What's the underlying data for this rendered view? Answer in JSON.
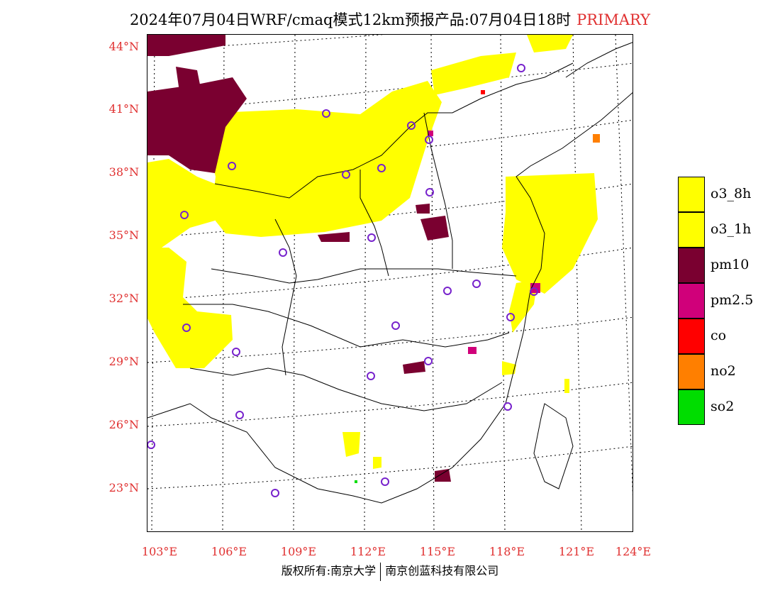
{
  "title": {
    "text": "2024年07月04日WRF/cmaq模式12km预报产品:07月04日18时",
    "tag": "PRIMARY",
    "tag_color": "#e03030"
  },
  "axes": {
    "lat_labels": [
      "44°N",
      "41°N",
      "38°N",
      "35°N",
      "32°N",
      "29°N",
      "26°N",
      "23°N"
    ],
    "lon_labels": [
      "103°E",
      "106°E",
      "109°E",
      "112°E",
      "115°E",
      "118°E",
      "121°E",
      "124°E"
    ],
    "label_color": "#e03030"
  },
  "legend": {
    "items": [
      {
        "label": "o3_8h",
        "color": "#ffff00"
      },
      {
        "label": "o3_1h",
        "color": "#ffff00"
      },
      {
        "label": "pm10",
        "color": "#7a0030"
      },
      {
        "label": "pm2.5",
        "color": "#d0007a"
      },
      {
        "label": "co",
        "color": "#ff0000"
      },
      {
        "label": "no2",
        "color": "#ff7f00"
      },
      {
        "label": "so2",
        "color": "#00dd00"
      }
    ]
  },
  "footer": {
    "left": "版权所有:南京大学",
    "right": "南京创蓝科技有限公司"
  }
}
